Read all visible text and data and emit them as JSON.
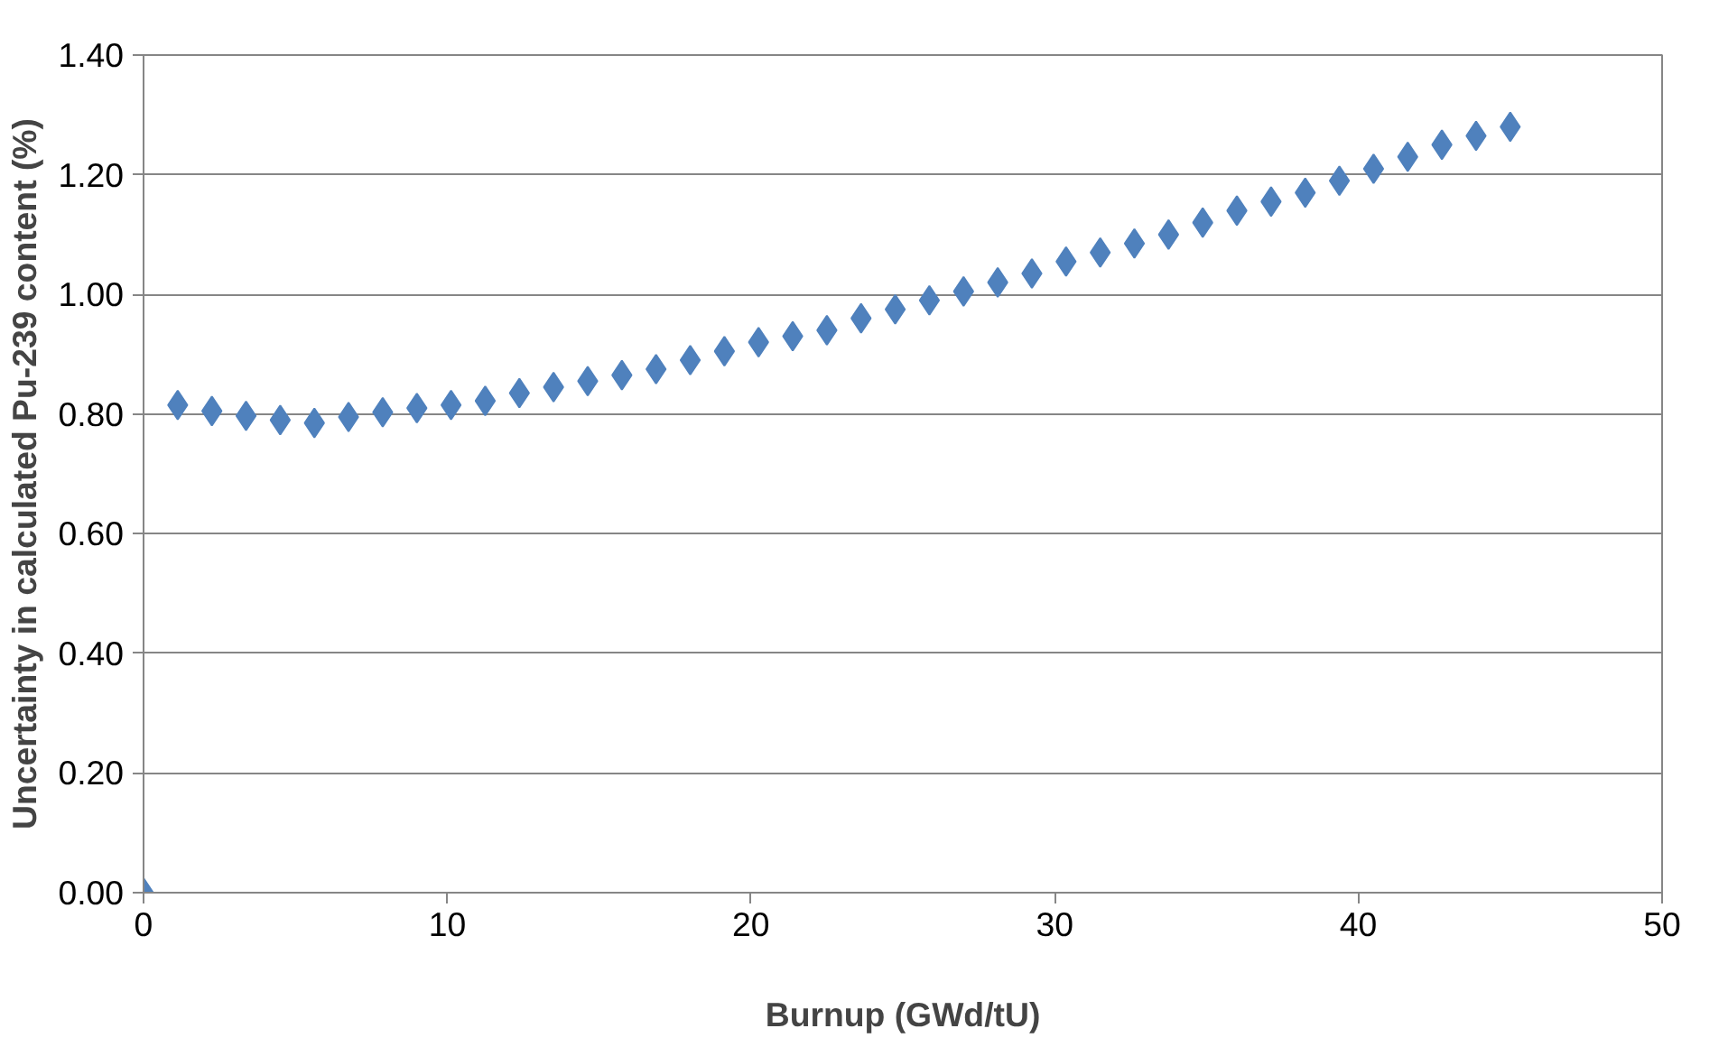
{
  "chart_data": {
    "type": "scatter",
    "xlabel": "Burnup (GWd/tU)",
    "ylabel": "Uncertainty in calculated Pu-239 content (%)",
    "x": [
      0,
      1.125,
      2.25,
      3.375,
      4.5,
      5.625,
      6.75,
      7.875,
      9,
      10.125,
      11.25,
      12.375,
      13.5,
      14.625,
      15.75,
      16.875,
      18,
      19.125,
      20.25,
      21.375,
      22.5,
      23.625,
      24.75,
      25.875,
      27,
      28.125,
      29.25,
      30.375,
      31.5,
      32.625,
      33.75,
      34.875,
      36,
      37.125,
      38.25,
      39.375,
      40.5,
      41.625,
      42.75,
      43.875,
      45
    ],
    "series": [
      {
        "color": "#4f81bd",
        "values": [
          0,
          0.815,
          0.805,
          0.797,
          0.79,
          0.785,
          0.795,
          0.803,
          0.81,
          0.815,
          0.822,
          0.835,
          0.845,
          0.855,
          0.865,
          0.875,
          0.89,
          0.905,
          0.92,
          0.93,
          0.94,
          0.96,
          0.975,
          0.99,
          1.005,
          1.02,
          1.035,
          1.055,
          1.07,
          1.085,
          1.1,
          1.12,
          1.14,
          1.155,
          1.17,
          1.19,
          1.21,
          1.23,
          1.25,
          1.265,
          1.28
        ]
      }
    ],
    "xlim": [
      0,
      50
    ],
    "xticks": [
      0,
      10,
      20,
      30,
      40,
      50
    ],
    "ylim": [
      0,
      1.4
    ],
    "yticks": [
      {
        "value": 0,
        "label": "0.00"
      },
      {
        "value": 0.2,
        "label": "0.20"
      },
      {
        "value": 0.4,
        "label": "0.40"
      },
      {
        "value": 0.6,
        "label": "0.60"
      },
      {
        "value": 0.8,
        "label": "0.80"
      },
      {
        "value": 1.0,
        "label": "1.00"
      },
      {
        "value": 1.2,
        "label": "1.20"
      },
      {
        "value": 1.4,
        "label": "1.40"
      }
    ],
    "grid": "y",
    "marker": "diamond"
  }
}
